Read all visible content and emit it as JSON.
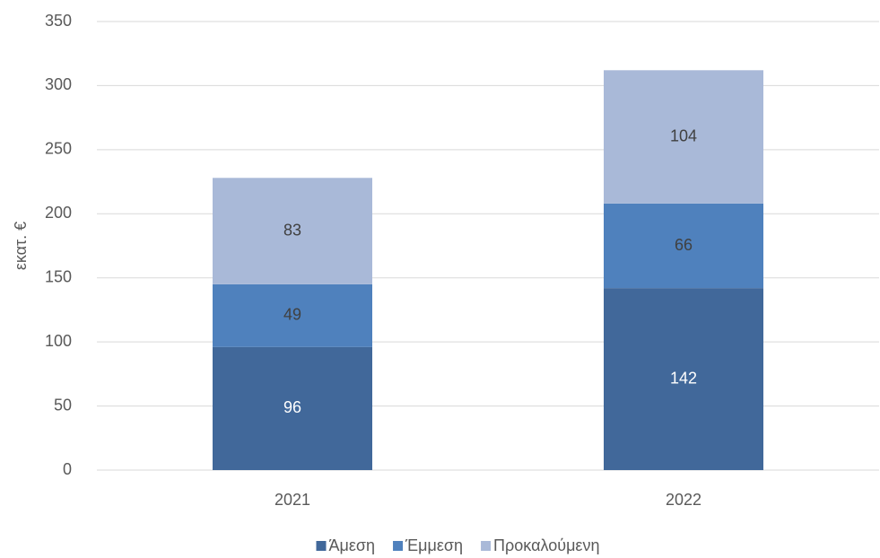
{
  "chart_data": {
    "type": "bar",
    "stacked": true,
    "y_label": "εκατ. €",
    "categories": [
      "2021",
      "2022"
    ],
    "series": [
      {
        "name": "Άμεση",
        "color": "#41689a",
        "label_color": "#ffffff",
        "values": [
          96,
          142
        ]
      },
      {
        "name": "Έμμεση",
        "color": "#4f81bd",
        "label_color": "#404040",
        "values": [
          49,
          66
        ]
      },
      {
        "name": "Προκαλούμενη",
        "color": "#a9b9d8",
        "label_color": "#404040",
        "values": [
          83,
          104
        ]
      }
    ],
    "ylim": [
      0,
      350
    ],
    "yticks": [
      0,
      50,
      100,
      150,
      200,
      250,
      300,
      350
    ],
    "grid": true,
    "legend": "bottom"
  }
}
